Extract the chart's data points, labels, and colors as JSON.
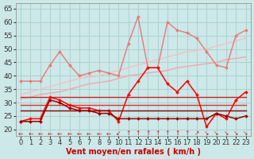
{
  "x": [
    0,
    1,
    2,
    3,
    4,
    5,
    6,
    7,
    8,
    9,
    10,
    11,
    12,
    13,
    14,
    15,
    16,
    17,
    18,
    19,
    20,
    21,
    22,
    23
  ],
  "series": [
    {
      "name": "lightest_trend_upper",
      "color": "#f5c0c0",
      "linewidth": 1.0,
      "marker": null,
      "linestyle": "-",
      "y": [
        33,
        34,
        35,
        36,
        37,
        38,
        39,
        39.5,
        40,
        41,
        42,
        43,
        44,
        45,
        46,
        47,
        48,
        49,
        49.5,
        50,
        51,
        52,
        53,
        54
      ]
    },
    {
      "name": "light_trend_lower",
      "color": "#f0a8a8",
      "linewidth": 1.0,
      "marker": null,
      "linestyle": "-",
      "y": [
        31.5,
        32,
        33,
        33.5,
        34,
        35,
        36,
        37,
        37.5,
        38,
        39,
        40,
        40.5,
        41,
        41.5,
        42,
        43,
        43.5,
        44,
        44.5,
        45,
        46,
        46.5,
        47
      ]
    },
    {
      "name": "pink_with_markers",
      "color": "#e87878",
      "linewidth": 1.0,
      "marker": "D",
      "markersize": 2,
      "linestyle": "-",
      "y": [
        38,
        38,
        38,
        44,
        49,
        44,
        40,
        41,
        42,
        41,
        40,
        52,
        62,
        43,
        43,
        60,
        57,
        56,
        54,
        49,
        44,
        43,
        55,
        57
      ]
    },
    {
      "name": "dark_red_flat_upper",
      "color": "#cc2222",
      "linewidth": 1.0,
      "marker": null,
      "linestyle": "-",
      "y": [
        32,
        32,
        32,
        32,
        32,
        32,
        32,
        32,
        32,
        32,
        32,
        32,
        32,
        32,
        32,
        32,
        32,
        32,
        32,
        32,
        32,
        32,
        32,
        32
      ]
    },
    {
      "name": "red_flat_middle",
      "color": "#dd3333",
      "linewidth": 1.0,
      "marker": null,
      "linestyle": "-",
      "y": [
        29,
        29,
        29,
        29,
        29,
        29,
        29,
        29,
        29,
        29,
        29,
        29,
        29,
        29,
        29,
        29,
        29,
        29,
        29,
        29,
        29,
        29,
        29,
        29
      ]
    },
    {
      "name": "bright_red_markers",
      "color": "#ff0000",
      "linewidth": 1.1,
      "marker": "D",
      "markersize": 2,
      "linestyle": "-",
      "y": [
        23,
        24,
        24,
        32,
        31,
        29,
        28,
        28,
        27,
        27,
        23,
        33,
        38,
        43,
        43,
        37,
        34,
        38,
        33,
        21,
        26,
        24,
        31,
        34
      ]
    },
    {
      "name": "dark_red_markers",
      "color": "#990000",
      "linewidth": 1.1,
      "marker": "D",
      "markersize": 2,
      "linestyle": "-",
      "y": [
        23,
        23,
        23,
        31,
        30,
        28,
        27,
        27,
        26,
        26,
        24,
        24,
        24,
        24,
        24,
        24,
        24,
        24,
        24,
        24,
        26,
        25,
        24,
        25
      ]
    },
    {
      "name": "darkest_red_flat",
      "color": "#880000",
      "linewidth": 1.0,
      "marker": null,
      "linestyle": "-",
      "y": [
        27,
        27,
        27,
        27,
        27,
        27,
        27,
        27,
        27,
        27,
        27,
        27,
        27,
        27,
        27,
        27,
        27,
        27,
        27,
        27,
        27,
        27,
        27,
        27
      ]
    }
  ],
  "wind_symbols": [
    "←",
    "←",
    "←",
    "←",
    "←",
    "←",
    "←",
    "←",
    "←",
    "←",
    "↙",
    "↑",
    "↑",
    "↑",
    "↑",
    "↑",
    "↑",
    "↑",
    "↗",
    "↘",
    "↘",
    "↘",
    "↘",
    "↘"
  ],
  "wind_y": 18.5,
  "xlabel": "Vent moyen/en rafales ( km/h )",
  "yticks": [
    20,
    25,
    30,
    35,
    40,
    45,
    50,
    55,
    60,
    65
  ],
  "xlim": [
    -0.5,
    23.5
  ],
  "ylim": [
    17.5,
    67
  ],
  "background_color": "#cce8e8",
  "grid_color": "#aacccc",
  "axis_fontsize": 6.5,
  "xlabel_fontsize": 7.0,
  "wind_fontsize": 5.5
}
